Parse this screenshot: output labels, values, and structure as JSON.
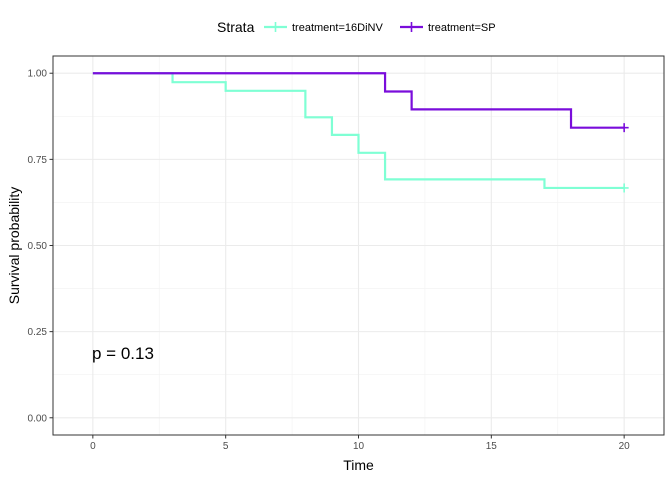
{
  "chart_data": {
    "type": "line",
    "step": true,
    "xlabel": "Time",
    "ylabel": "Survival probability",
    "xlim": [
      -1.5,
      21.5
    ],
    "ylim": [
      -0.05,
      1.05
    ],
    "x_ticks": [
      0,
      5,
      10,
      15,
      20
    ],
    "y_ticks": [
      0.0,
      0.25,
      0.5,
      0.75,
      1.0
    ],
    "x_tick_labels": [
      "0",
      "5",
      "10",
      "15",
      "20"
    ],
    "y_tick_labels": [
      "0.00",
      "0.25",
      "0.50",
      "0.75",
      "1.00"
    ],
    "grid": true,
    "legend": {
      "title": "Strata",
      "position": "top",
      "entries": [
        "treatment=16DiNV",
        "treatment=SP"
      ]
    },
    "annotation": {
      "text": "p = 0.13",
      "x": 0.4,
      "y": 0.18
    },
    "series": [
      {
        "name": "treatment=16DiNV",
        "color": "#7fffd4",
        "times": [
          0,
          3,
          5,
          8,
          9,
          10,
          11,
          17,
          20
        ],
        "surv": [
          1.0,
          0.974,
          0.949,
          0.872,
          0.821,
          0.769,
          0.692,
          0.667,
          0.667
        ],
        "censor": [
          [
            20,
            0.667
          ]
        ]
      },
      {
        "name": "treatment=SP",
        "color": "#7a0ddb",
        "times": [
          0,
          11,
          12,
          18,
          20
        ],
        "surv": [
          1.0,
          0.947,
          0.895,
          0.842,
          0.842
        ],
        "censor": [
          [
            20,
            0.842
          ]
        ]
      }
    ]
  }
}
